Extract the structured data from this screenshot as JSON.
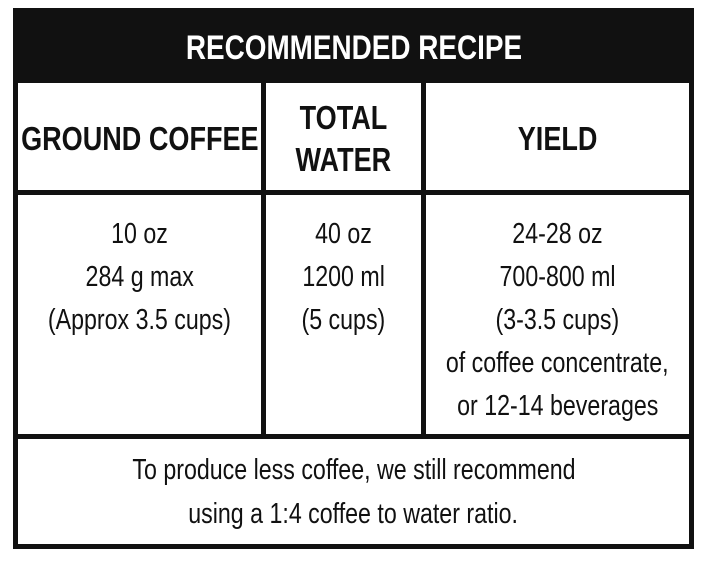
{
  "recipe": {
    "title": "RECOMMENDED RECIPE",
    "headers": {
      "ground_coffee": "GROUND COFFEE",
      "total_water_line1": "TOTAL",
      "total_water_line2": "WATER",
      "yield": "YIELD"
    },
    "ground_coffee": [
      "10 oz",
      "284 g max",
      "(Approx 3.5 cups)"
    ],
    "total_water": [
      "40 oz",
      "1200 ml",
      "(5 cups)"
    ],
    "yield": [
      "24-28 oz",
      "700-800 ml",
      "(3-3.5 cups)",
      "of coffee concentrate,",
      "or 12-14 beverages"
    ],
    "footer": [
      "To produce less coffee, we still recommend",
      "using a 1:4 coffee to water ratio."
    ]
  }
}
